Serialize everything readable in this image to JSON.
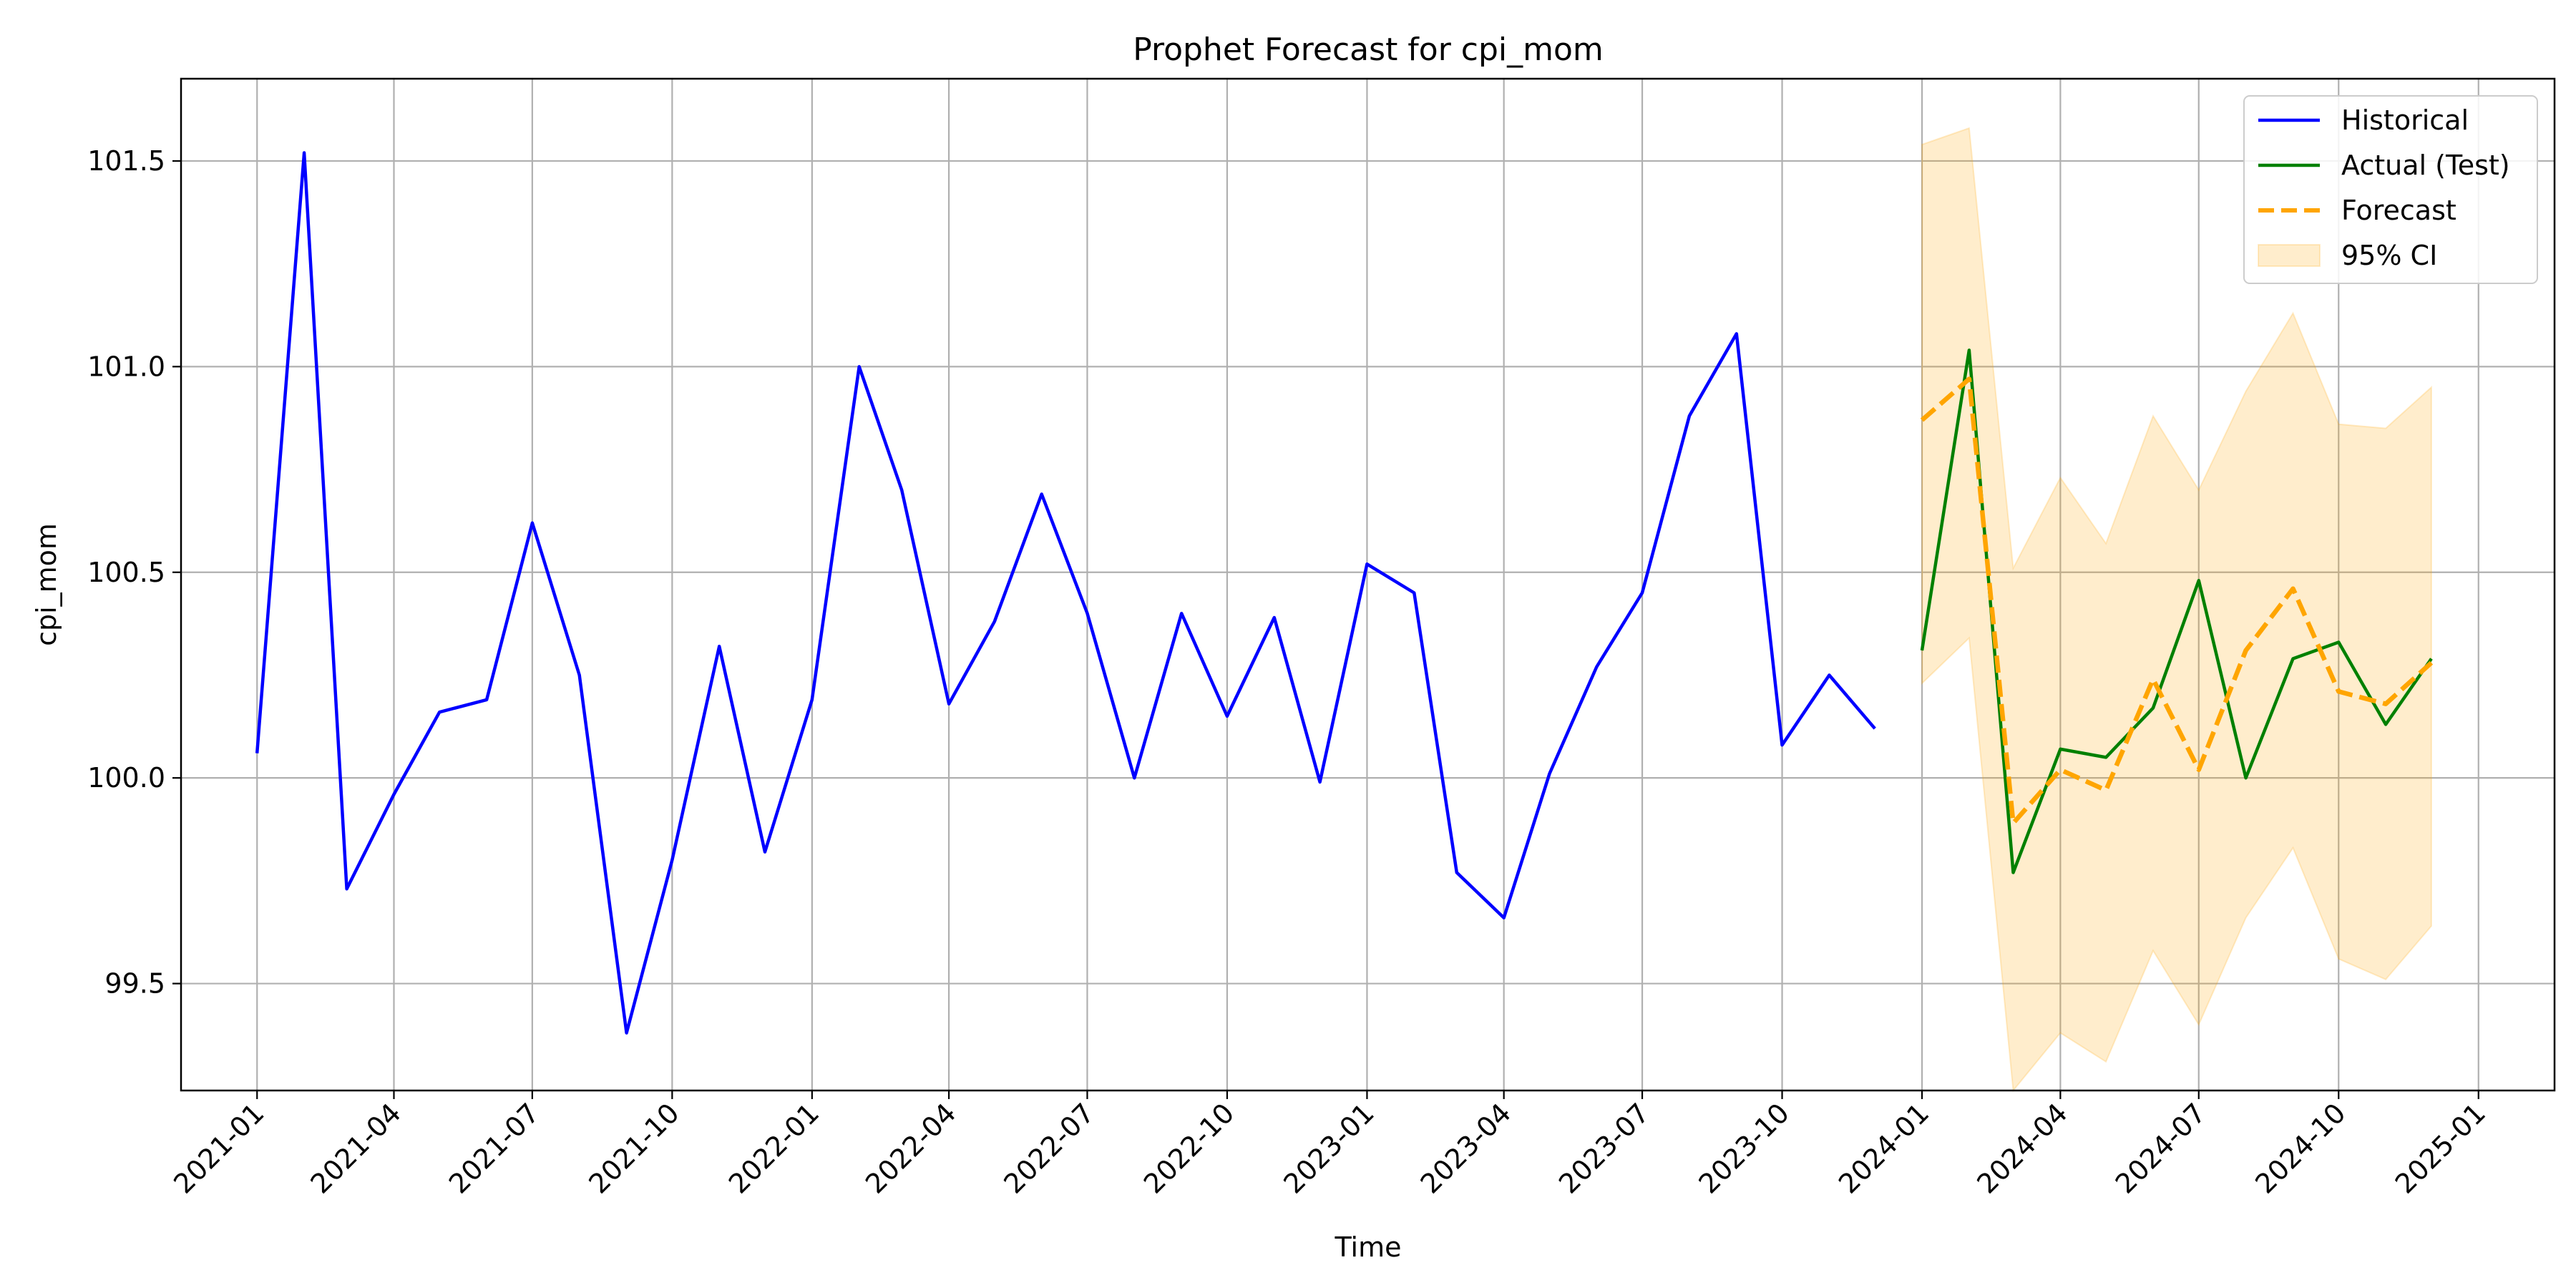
{
  "chart_data": {
    "type": "line",
    "title": "Prophet Forecast for cpi_mom",
    "xlabel": "Time",
    "ylabel": "cpi_mom",
    "xlim": [
      "2020-11-12",
      "2025-02-20"
    ],
    "ylim": [
      99.24,
      101.7
    ],
    "x_ticks": [
      "2021-01",
      "2021-04",
      "2021-07",
      "2021-10",
      "2022-01",
      "2022-04",
      "2022-07",
      "2022-10",
      "2023-01",
      "2023-04",
      "2023-07",
      "2023-10",
      "2024-01",
      "2024-04",
      "2024-07",
      "2024-10",
      "2025-01"
    ],
    "y_ticks": [
      99.5,
      100.0,
      100.5,
      101.0,
      101.5
    ],
    "y_tick_labels": [
      "99.5",
      "100.0",
      "100.5",
      "101.0",
      "101.5"
    ],
    "grid": true,
    "legend_position": "top-right",
    "series": [
      {
        "name": "Historical",
        "color": "#0000ff",
        "style": "solid",
        "x": [
          "2021-01-01",
          "2021-02-01",
          "2021-03-01",
          "2021-04-01",
          "2021-05-01",
          "2021-06-01",
          "2021-07-01",
          "2021-08-01",
          "2021-09-01",
          "2021-10-01",
          "2021-11-01",
          "2021-12-01",
          "2022-01-01",
          "2022-02-01",
          "2022-03-01",
          "2022-04-01",
          "2022-05-01",
          "2022-06-01",
          "2022-07-01",
          "2022-08-01",
          "2022-09-01",
          "2022-10-01",
          "2022-11-01",
          "2022-12-01",
          "2023-01-01",
          "2023-02-01",
          "2023-03-01",
          "2023-04-01",
          "2023-05-01",
          "2023-06-01",
          "2023-07-01",
          "2023-08-01",
          "2023-09-01",
          "2023-10-01",
          "2023-11-01",
          "2023-12-01"
        ],
        "values": [
          100.06,
          101.52,
          99.73,
          99.96,
          100.16,
          100.19,
          100.62,
          100.25,
          99.38,
          99.8,
          100.32,
          99.82,
          100.19,
          101.0,
          100.7,
          100.18,
          100.38,
          100.69,
          100.4,
          100.0,
          100.4,
          100.15,
          100.39,
          99.99,
          100.52,
          100.45,
          99.77,
          99.66,
          100.01,
          100.27,
          100.45,
          100.88,
          101.08,
          100.08,
          100.25,
          100.12
        ]
      },
      {
        "name": "Actual (Test)",
        "color": "#008000",
        "style": "solid",
        "x": [
          "2024-01-01",
          "2024-02-01",
          "2024-03-01",
          "2024-04-01",
          "2024-05-01",
          "2024-06-01",
          "2024-07-01",
          "2024-08-01",
          "2024-09-01",
          "2024-10-01",
          "2024-11-01",
          "2024-12-01"
        ],
        "values": [
          100.31,
          101.04,
          99.77,
          100.07,
          100.05,
          100.17,
          100.48,
          100.0,
          100.29,
          100.33,
          100.13,
          100.29
        ]
      },
      {
        "name": "Forecast",
        "color": "#ffa500",
        "style": "dashed",
        "x": [
          "2024-01-01",
          "2024-02-01",
          "2024-03-01",
          "2024-04-01",
          "2024-05-01",
          "2024-06-01",
          "2024-07-01",
          "2024-08-01",
          "2024-09-01",
          "2024-10-01",
          "2024-11-01",
          "2024-12-01"
        ],
        "values": [
          100.87,
          100.97,
          99.89,
          100.02,
          99.97,
          100.24,
          100.02,
          100.31,
          100.46,
          100.21,
          100.18,
          100.28
        ]
      },
      {
        "name": "95% CI",
        "color": "#ffa500",
        "style": "band",
        "x": [
          "2024-01-01",
          "2024-02-01",
          "2024-03-01",
          "2024-04-01",
          "2024-05-01",
          "2024-06-01",
          "2024-07-01",
          "2024-08-01",
          "2024-09-01",
          "2024-10-01",
          "2024-11-01",
          "2024-12-01"
        ],
        "lower": [
          100.23,
          100.34,
          99.24,
          99.38,
          99.31,
          99.58,
          99.4,
          99.66,
          99.83,
          99.56,
          99.51,
          99.64
        ],
        "upper": [
          101.54,
          101.58,
          100.51,
          100.73,
          100.57,
          100.88,
          100.7,
          100.94,
          101.13,
          100.86,
          100.85,
          100.95
        ]
      }
    ]
  }
}
